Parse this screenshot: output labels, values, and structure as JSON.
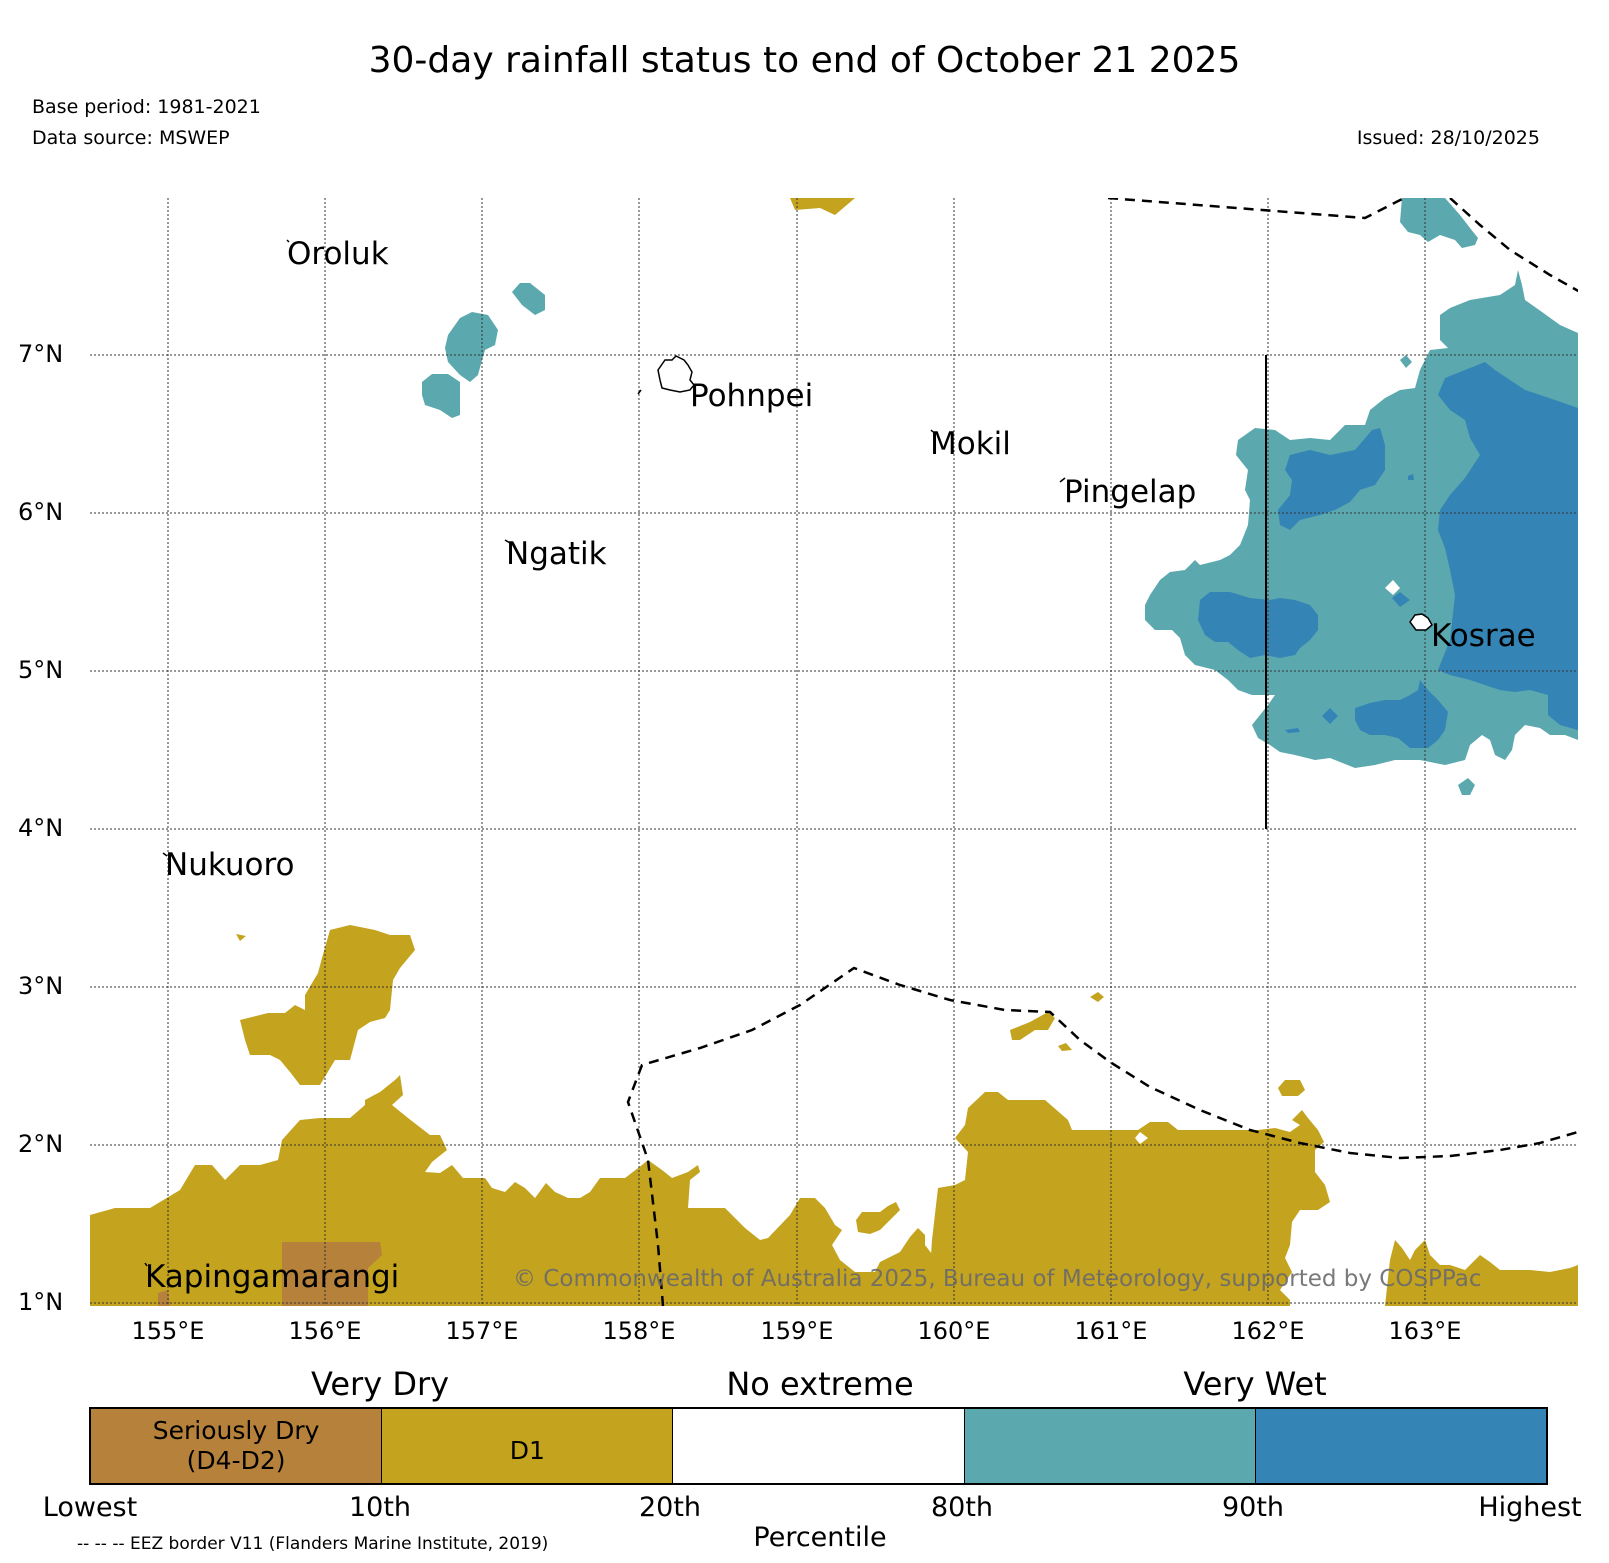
{
  "header": {
    "title": "30-day rainfall status to end of October 21 2025",
    "base_period": "Base period: 1981-2021",
    "data_source": "Data source: MSWEP",
    "issued": "Issued: 28/10/2025"
  },
  "map": {
    "lat_labels": [
      "7°N",
      "6°N",
      "5°N",
      "4°N",
      "3°N",
      "2°N",
      "1°N"
    ],
    "lon_labels": [
      "155°E",
      "156°E",
      "157°E",
      "158°E",
      "159°E",
      "160°E",
      "161°E",
      "162°E",
      "163°E"
    ],
    "islands": {
      "oroluk": "Oroluk",
      "pohnpei": "Pohnpei",
      "mokil": "Mokil",
      "pingelap": "Pingelap",
      "ngatik": "Ngatik",
      "kosrae": "Kosrae",
      "nukuoro": "Nukuoro",
      "kapingamarangi": "Kapingamarangi"
    },
    "copyright": "© Commonwealth of Australia 2025, Bureau of Meteorology, supported by COSPPac",
    "colors": {
      "seriously_dry": "#b5813b",
      "d1": "#c4a31e",
      "no_extreme": "#ffffff",
      "very_wet_80": "#5ba8ae",
      "very_wet_90": "#3484b6"
    }
  },
  "legend": {
    "groups": [
      "Very Dry",
      "No extreme",
      "Very Wet"
    ],
    "swatches": [
      {
        "line1": "Seriously Dry",
        "line2": "(D4-D2)"
      },
      {
        "line1": "D1",
        "line2": ""
      },
      {
        "line1": "",
        "line2": ""
      },
      {
        "line1": "",
        "line2": ""
      },
      {
        "line1": "",
        "line2": ""
      }
    ],
    "ticks": [
      "Lowest",
      "10th",
      "20th",
      "80th",
      "90th",
      "Highest"
    ],
    "axis_label": "Percentile",
    "eez_note": "-- -- -- EEZ border V11 (Flanders Marine Institute, 2019)"
  }
}
